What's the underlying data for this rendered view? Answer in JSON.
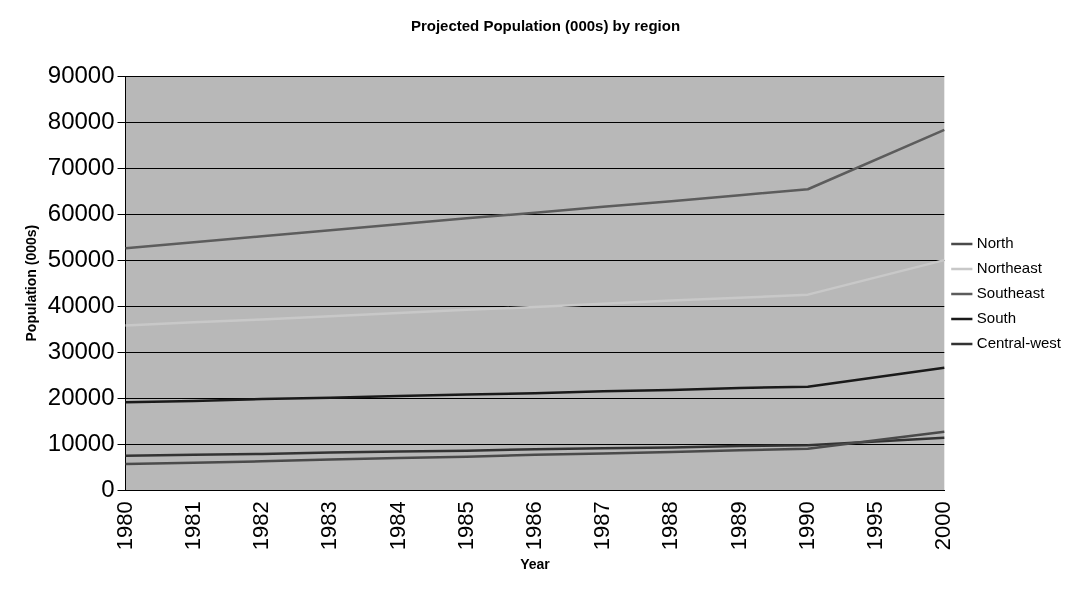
{
  "chart_data": {
    "type": "line",
    "title": "Projected Population (000s) by region",
    "xlabel": "Year",
    "ylabel": "Population (000s)",
    "categories": [
      "1980",
      "1981",
      "1982",
      "1983",
      "1984",
      "1985",
      "1986",
      "1987",
      "1988",
      "1989",
      "1990",
      "1995",
      "2000"
    ],
    "series": [
      {
        "name": "North",
        "color": "#4a4a4a",
        "values": [
          5700,
          6000,
          6300,
          6700,
          7000,
          7300,
          7700,
          8000,
          8300,
          8700,
          9000,
          null,
          12700
        ]
      },
      {
        "name": "Northeast",
        "color": "#c8c8c8",
        "values": [
          35800,
          36500,
          37100,
          37800,
          38500,
          39200,
          39800,
          40500,
          41200,
          41800,
          42500,
          null,
          50000
        ]
      },
      {
        "name": "Southeast",
        "color": "#5c5c5c",
        "values": [
          52600,
          53900,
          55200,
          56500,
          57800,
          59100,
          60300,
          61600,
          62800,
          64100,
          65400,
          null,
          78300
        ]
      },
      {
        "name": "South",
        "color": "#1a1a1a",
        "values": [
          19100,
          19400,
          19800,
          20100,
          20500,
          20800,
          21100,
          21500,
          21800,
          22200,
          22500,
          null,
          26600
        ]
      },
      {
        "name": "Central-west",
        "color": "#333333",
        "values": [
          7500,
          7700,
          7900,
          8200,
          8400,
          8600,
          8900,
          9100,
          9300,
          9600,
          9800,
          null,
          11400
        ]
      }
    ],
    "ylim": [
      0,
      90000
    ],
    "yticks": [
      0,
      10000,
      20000,
      30000,
      40000,
      50000,
      60000,
      70000,
      80000,
      90000
    ],
    "grid": "y",
    "legend": "right",
    "marker": "none",
    "line_style": "solid"
  }
}
